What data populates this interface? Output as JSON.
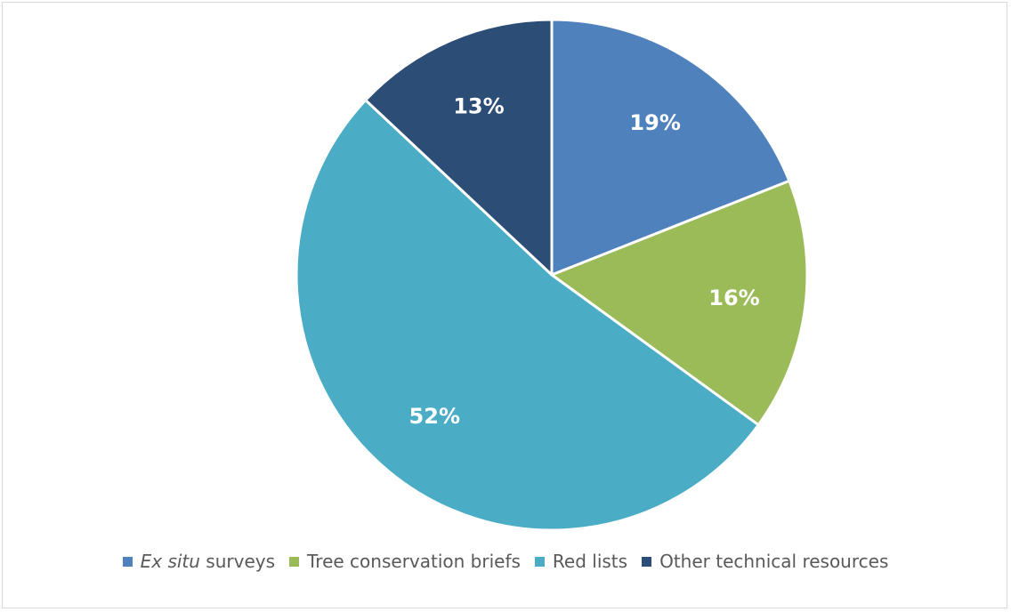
{
  "chart_data": {
    "type": "pie",
    "title": "",
    "series": [
      {
        "name": "",
        "values": [
          {
            "label_parts": [
              {
                "text": "Ex situ",
                "italic": true
              },
              {
                "text": " surveys",
                "italic": false
              }
            ],
            "value": 19,
            "color": "#4f81bd"
          },
          {
            "label_parts": [
              {
                "text": "Tree conservation briefs",
                "italic": false
              }
            ],
            "value": 16,
            "color": "#9bbb59"
          },
          {
            "label_parts": [
              {
                "text": "Red lists",
                "italic": false
              }
            ],
            "value": 52,
            "color": "#4bacc6"
          },
          {
            "label_parts": [
              {
                "text": "Other technical resources",
                "italic": false
              }
            ],
            "value": 13,
            "color": "#2c4d75"
          }
        ]
      }
    ],
    "data_labels": [
      "19%",
      "16%",
      "52%",
      "13%"
    ],
    "start_angle": "12 o'clock",
    "direction": "clockwise",
    "legend_position": "bottom"
  }
}
